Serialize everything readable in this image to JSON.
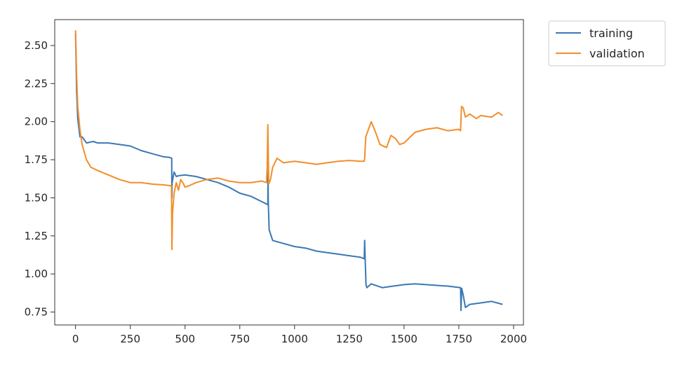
{
  "chart_data": {
    "type": "line",
    "title": "",
    "xlabel": "",
    "ylabel": "",
    "xlim": [
      -95,
      2045
    ],
    "ylim": [
      0.665,
      2.67
    ],
    "xticks": [
      0,
      250,
      500,
      750,
      1000,
      1250,
      1500,
      1750,
      2000
    ],
    "yticks": [
      0.75,
      1.0,
      1.25,
      1.5,
      1.75,
      2.0,
      2.25,
      2.5
    ],
    "xtick_labels": [
      "0",
      "250",
      "500",
      "750",
      "1000",
      "1250",
      "1500",
      "1750",
      "2000"
    ],
    "ytick_labels": [
      "0.75",
      "1.00",
      "1.25",
      "1.50",
      "1.75",
      "2.00",
      "2.25",
      "2.50"
    ],
    "grid": false,
    "legend": {
      "placement": "outside-top-right"
    },
    "series": [
      {
        "name": "training",
        "color": "#3a78b5",
        "x": [
          0,
          5,
          10,
          20,
          30,
          50,
          80,
          100,
          150,
          200,
          250,
          300,
          350,
          400,
          430,
          439,
          440,
          441,
          450,
          460,
          470,
          500,
          550,
          600,
          650,
          700,
          750,
          800,
          850,
          878,
          879,
          880,
          884,
          900,
          950,
          1000,
          1050,
          1100,
          1150,
          1200,
          1250,
          1300,
          1318,
          1320,
          1322,
          1326,
          1330,
          1350,
          1400,
          1450,
          1500,
          1550,
          1600,
          1650,
          1700,
          1758,
          1760,
          1763,
          1770,
          1780,
          1800,
          1850,
          1900,
          1950
        ],
        "y": [
          2.58,
          2.2,
          2.02,
          1.9,
          1.9,
          1.86,
          1.87,
          1.86,
          1.86,
          1.85,
          1.84,
          1.81,
          1.79,
          1.77,
          1.765,
          1.76,
          1.5,
          1.6,
          1.67,
          1.64,
          1.645,
          1.65,
          1.64,
          1.62,
          1.6,
          1.57,
          1.53,
          1.51,
          1.475,
          1.455,
          1.67,
          1.48,
          1.29,
          1.22,
          1.2,
          1.18,
          1.17,
          1.15,
          1.14,
          1.13,
          1.12,
          1.11,
          1.1,
          1.22,
          1.12,
          0.93,
          0.91,
          0.935,
          0.91,
          0.92,
          0.93,
          0.935,
          0.93,
          0.925,
          0.92,
          0.91,
          0.76,
          0.905,
          0.86,
          0.78,
          0.8,
          0.81,
          0.82,
          0.8
        ]
      },
      {
        "name": "validation",
        "color": "#f28e2b",
        "x": [
          0,
          5,
          10,
          20,
          30,
          50,
          70,
          100,
          150,
          200,
          250,
          300,
          350,
          400,
          430,
          438,
          440,
          443,
          450,
          460,
          470,
          480,
          490,
          500,
          520,
          550,
          600,
          650,
          700,
          750,
          800,
          850,
          872,
          875,
          878,
          882,
          890,
          900,
          920,
          950,
          1000,
          1050,
          1100,
          1150,
          1200,
          1250,
          1300,
          1318,
          1320,
          1325,
          1340,
          1350,
          1370,
          1390,
          1420,
          1440,
          1460,
          1480,
          1500,
          1550,
          1600,
          1650,
          1700,
          1750,
          1758,
          1762,
          1770,
          1780,
          1800,
          1830,
          1850,
          1900,
          1930,
          1950
        ],
        "y": [
          2.6,
          2.3,
          2.1,
          1.95,
          1.85,
          1.75,
          1.7,
          1.68,
          1.65,
          1.62,
          1.6,
          1.6,
          1.59,
          1.585,
          1.58,
          1.58,
          1.16,
          1.4,
          1.53,
          1.6,
          1.55,
          1.62,
          1.6,
          1.57,
          1.58,
          1.6,
          1.62,
          1.63,
          1.61,
          1.6,
          1.6,
          1.61,
          1.6,
          1.7,
          1.98,
          1.59,
          1.62,
          1.7,
          1.76,
          1.73,
          1.74,
          1.73,
          1.72,
          1.73,
          1.74,
          1.745,
          1.74,
          1.74,
          1.76,
          1.9,
          1.96,
          2.0,
          1.93,
          1.85,
          1.83,
          1.91,
          1.89,
          1.85,
          1.86,
          1.93,
          1.95,
          1.96,
          1.94,
          1.95,
          1.94,
          2.1,
          2.09,
          2.03,
          2.05,
          2.02,
          2.04,
          2.03,
          2.06,
          2.04
        ]
      }
    ]
  }
}
